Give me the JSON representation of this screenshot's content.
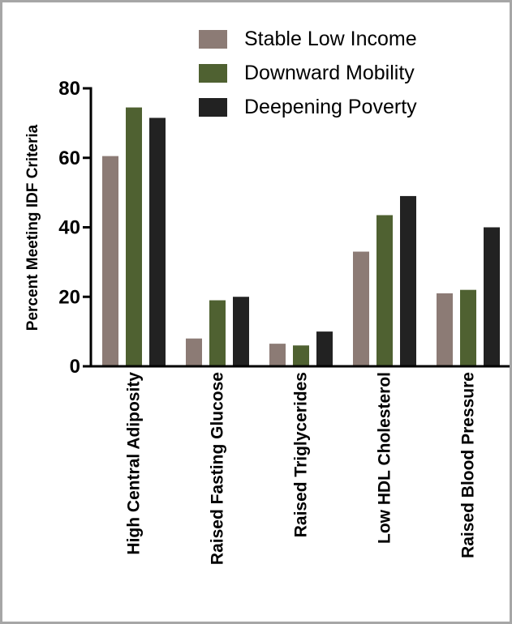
{
  "chart_data": {
    "type": "bar",
    "title": "",
    "xlabel": "",
    "ylabel": "Percent Meeting IDF Criteria",
    "ylim": [
      0,
      80
    ],
    "yticks": [
      0,
      20,
      40,
      60,
      80
    ],
    "grid": false,
    "legend_position": "top-right",
    "categories": [
      "High Central Adiposity",
      "Raised Fasting Glucose",
      "Raised Triglycerides",
      "Low HDL Cholesterol",
      "Raised Blood Pressure"
    ],
    "series": [
      {
        "name": "Stable Low Income",
        "color": "#8c7b75",
        "values": [
          60.5,
          8,
          6.5,
          33,
          21
        ]
      },
      {
        "name": "Downward Mobility",
        "color": "#4f6131",
        "values": [
          74.5,
          19,
          6,
          43.5,
          22
        ]
      },
      {
        "name": "Deepening Poverty",
        "color": "#222222",
        "values": [
          71.5,
          20,
          10,
          49,
          40
        ]
      }
    ]
  }
}
